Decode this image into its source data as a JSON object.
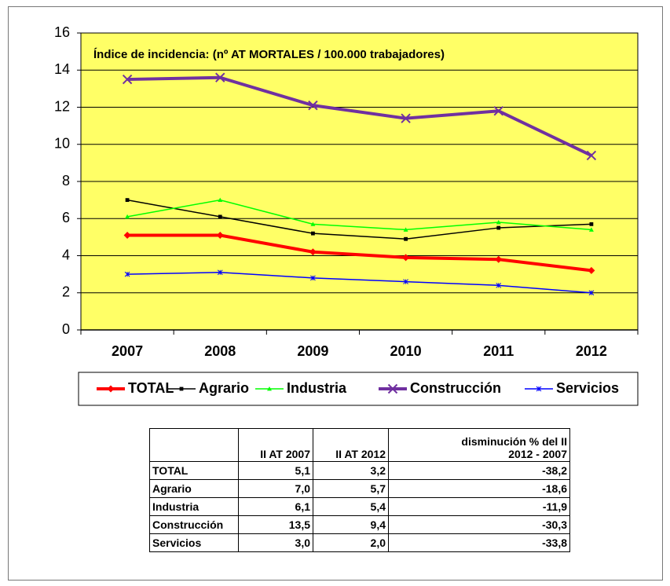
{
  "chart_data": {
    "type": "line",
    "annotation": "Índice de incidencia: (nº AT MORTALES / 100.000 trabajadores)",
    "categories": [
      "2007",
      "2008",
      "2009",
      "2010",
      "2011",
      "2012"
    ],
    "series": [
      {
        "name": "TOTAL",
        "color": "#ff0000",
        "marker": "diamond",
        "values": [
          5.1,
          5.1,
          4.2,
          3.9,
          3.8,
          3.2
        ]
      },
      {
        "name": "Agrario",
        "color": "#000000",
        "marker": "square",
        "values": [
          7.0,
          6.1,
          5.2,
          4.9,
          5.5,
          5.7
        ]
      },
      {
        "name": "Industria",
        "color": "#00ff00",
        "marker": "triangle",
        "values": [
          6.1,
          7.0,
          5.7,
          5.4,
          5.8,
          5.4
        ]
      },
      {
        "name": "Construcción",
        "color": "#7030a0",
        "marker": "x",
        "values": [
          13.5,
          13.6,
          12.1,
          11.4,
          11.8,
          9.4
        ]
      },
      {
        "name": "Servicios",
        "color": "#0000ff",
        "marker": "star",
        "values": [
          3.0,
          3.1,
          2.8,
          2.6,
          2.4,
          2.0
        ]
      }
    ],
    "ylim": [
      0,
      16
    ],
    "yticks": [
      0,
      2,
      4,
      6,
      8,
      10,
      12,
      14,
      16
    ],
    "grid": true,
    "legend": "bottom",
    "plot_background": "#ffff66"
  },
  "table": {
    "header": [
      "",
      "II AT 2007",
      "II AT 2012",
      [
        "disminución % del II",
        "2012 - 2007"
      ]
    ],
    "rows": [
      [
        "TOTAL",
        "5,1",
        "3,2",
        "-38,2"
      ],
      [
        "Agrario",
        "7,0",
        "5,7",
        "-18,6"
      ],
      [
        "Industria",
        "6,1",
        "5,4",
        "-11,9"
      ],
      [
        "Construcción",
        "13,5",
        "9,4",
        "-30,3"
      ],
      [
        "Servicios",
        "3,0",
        "2,0",
        "-33,8"
      ]
    ]
  }
}
